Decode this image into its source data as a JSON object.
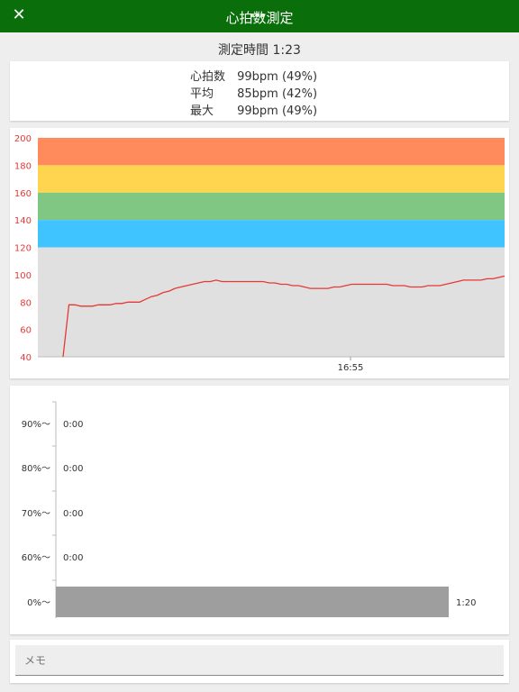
{
  "header": {
    "title": "心拍数測定",
    "close_icon": "close-icon"
  },
  "measurement": {
    "duration_label": "測定時間 1:23"
  },
  "stats": {
    "rows": [
      {
        "label": "心拍数",
        "value": "99bpm (49%)"
      },
      {
        "label": "平均",
        "value": "85bpm (42%)"
      },
      {
        "label": "最大",
        "value": "99bpm (49%)"
      }
    ]
  },
  "chart_data": [
    {
      "type": "line",
      "ylim": [
        40,
        200
      ],
      "y_ticks": [
        "200",
        "180",
        "160",
        "140",
        "120",
        "100",
        "80",
        "60",
        "40"
      ],
      "x_tick": "16:55",
      "zones": [
        {
          "from": 180,
          "to": 200,
          "color": "#ff8a5c"
        },
        {
          "from": 160,
          "to": 180,
          "color": "#ffd54f"
        },
        {
          "from": 140,
          "to": 160,
          "color": "#81c784"
        },
        {
          "from": 120,
          "to": 140,
          "color": "#40c4ff"
        },
        {
          "from": 40,
          "to": 120,
          "color": "#e0e0e0"
        }
      ],
      "line_color": "#e53935",
      "values": [
        40,
        78,
        78,
        77,
        77,
        77,
        78,
        78,
        78,
        79,
        79,
        80,
        80,
        80,
        82,
        84,
        85,
        87,
        88,
        90,
        91,
        92,
        93,
        94,
        95,
        95,
        96,
        95,
        95,
        95,
        95,
        95,
        95,
        95,
        95,
        94,
        94,
        93,
        93,
        92,
        92,
        91,
        90,
        90,
        90,
        90,
        91,
        91,
        92,
        93,
        93,
        93,
        93,
        93,
        93,
        93,
        92,
        92,
        92,
        91,
        91,
        91,
        92,
        92,
        92,
        93,
        94,
        95,
        96,
        96,
        96,
        96,
        97,
        97,
        98,
        99
      ]
    },
    {
      "type": "bar",
      "orientation": "horizontal",
      "categories": [
        "90%〜",
        "80%〜",
        "70%〜",
        "60%〜",
        "0%〜"
      ],
      "values": [
        0,
        0,
        0,
        0,
        80
      ],
      "value_labels": [
        "0:00",
        "0:00",
        "0:00",
        "0:00",
        "1:20"
      ],
      "bar_color": "#9e9e9e"
    }
  ],
  "memo": {
    "placeholder": "メモ"
  }
}
